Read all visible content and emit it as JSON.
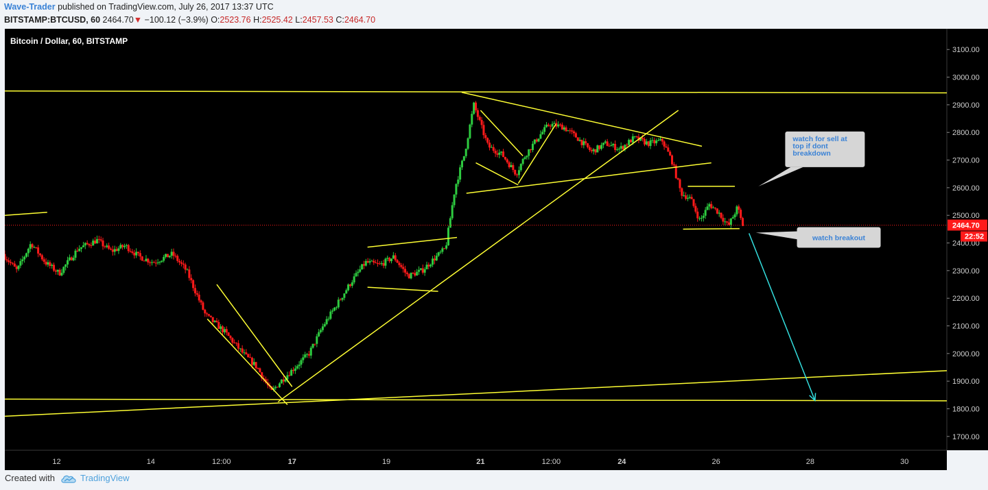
{
  "header": {
    "author": "Wave-Trader",
    "published": "published on TradingView.com, July 26, 2017 13:37 UTC",
    "symbol": "BITSTAMP:BTCUSD, 60",
    "last": "2464.70",
    "down_arrow": "▼",
    "change": "−100.12 (−3.9%)",
    "o_label": "O:",
    "o_value": "2523.76",
    "h_label": "H:",
    "h_value": "2525.42",
    "l_label": "L:",
    "l_value": "2457.53",
    "c_label": "C:",
    "c_value": "2464.70"
  },
  "footer": {
    "created_with": "Created with",
    "brand": "TradingView",
    "logo_icon": "tradingview-cloud-icon"
  },
  "colors": {
    "background": "#000000",
    "up": "#2ecc40",
    "down": "#ff1a1a",
    "trendline": "#ffff33",
    "arrow": "#33dddd",
    "price_tag": "#ff1a1a"
  },
  "chart_data": {
    "type": "candlestick",
    "title": "Bitcoin / Dollar, 60, BITSTAMP",
    "ylim": [
      1650,
      3175
    ],
    "y_ticks": [
      "3100.00",
      "3000.00",
      "2900.00",
      "2800.00",
      "2700.00",
      "2600.00",
      "2500.00",
      "2400.00",
      "2300.00",
      "2200.00",
      "2100.00",
      "2000.00",
      "1900.00",
      "1800.00",
      "1700.00"
    ],
    "x_ticks": [
      "12",
      "14",
      "12:00",
      "17",
      "19",
      "21",
      "12:00",
      "24",
      "26",
      "28",
      "30"
    ],
    "x_tick_days": [
      12,
      14,
      15.5,
      17,
      19,
      21,
      22.5,
      24,
      26,
      28,
      30
    ],
    "xlim": [
      10.9,
      30.9
    ],
    "current_price": "2464.70",
    "countdown": "22:52",
    "price_path": [
      [
        10.9,
        2360
      ],
      [
        11.2,
        2300
      ],
      [
        11.5,
        2400
      ],
      [
        11.8,
        2330
      ],
      [
        12.1,
        2290
      ],
      [
        12.5,
        2380
      ],
      [
        12.9,
        2410
      ],
      [
        13.2,
        2370
      ],
      [
        13.5,
        2390
      ],
      [
        13.8,
        2350
      ],
      [
        14.1,
        2330
      ],
      [
        14.5,
        2360
      ],
      [
        14.8,
        2300
      ],
      [
        15.2,
        2140
      ],
      [
        15.6,
        2080
      ],
      [
        16.0,
        2000
      ],
      [
        16.3,
        1950
      ],
      [
        16.6,
        1860
      ],
      [
        16.8,
        1900
      ],
      [
        17.1,
        1950
      ],
      [
        17.4,
        2000
      ],
      [
        17.7,
        2100
      ],
      [
        18.0,
        2180
      ],
      [
        18.3,
        2260
      ],
      [
        18.6,
        2330
      ],
      [
        18.9,
        2320
      ],
      [
        19.2,
        2350
      ],
      [
        19.5,
        2280
      ],
      [
        19.8,
        2300
      ],
      [
        20.1,
        2350
      ],
      [
        20.3,
        2380
      ],
      [
        20.5,
        2600
      ],
      [
        20.7,
        2720
      ],
      [
        20.9,
        2900
      ],
      [
        21.2,
        2750
      ],
      [
        21.5,
        2720
      ],
      [
        21.8,
        2650
      ],
      [
        22.0,
        2720
      ],
      [
        22.3,
        2790
      ],
      [
        22.5,
        2830
      ],
      [
        22.8,
        2820
      ],
      [
        23.1,
        2780
      ],
      [
        23.4,
        2730
      ],
      [
        23.7,
        2760
      ],
      [
        24.0,
        2740
      ],
      [
        24.3,
        2780
      ],
      [
        24.6,
        2760
      ],
      [
        24.9,
        2770
      ],
      [
        25.1,
        2700
      ],
      [
        25.3,
        2580
      ],
      [
        25.5,
        2560
      ],
      [
        25.7,
        2480
      ],
      [
        25.9,
        2540
      ],
      [
        26.1,
        2510
      ],
      [
        26.3,
        2460
      ],
      [
        26.5,
        2530
      ],
      [
        26.6,
        2465
      ]
    ],
    "trend_lines": [
      {
        "x1": 10.9,
        "y1": 2950,
        "x2": 30.9,
        "y2": 2943
      },
      {
        "x1": 10.9,
        "y1": 1835,
        "x2": 30.9,
        "y2": 1829
      },
      {
        "x1": 10.9,
        "y1": 1773,
        "x2": 30.9,
        "y2": 1938
      },
      {
        "x1": 10.9,
        "y1": 2500,
        "x2": 11.8,
        "y2": 2511
      },
      {
        "x1": 15.2,
        "y1": 2125,
        "x2": 16.9,
        "y2": 1815
      },
      {
        "x1": 15.4,
        "y1": 2250,
        "x2": 17.0,
        "y2": 1880
      },
      {
        "x1": 16.7,
        "y1": 1825,
        "x2": 25.2,
        "y2": 2880
      },
      {
        "x1": 18.6,
        "y1": 2240,
        "x2": 20.1,
        "y2": 2225
      },
      {
        "x1": 18.6,
        "y1": 2385,
        "x2": 20.5,
        "y2": 2420
      },
      {
        "x1": 20.7,
        "y1": 2580,
        "x2": 25.9,
        "y2": 2690
      },
      {
        "x1": 20.6,
        "y1": 2945,
        "x2": 25.7,
        "y2": 2750
      },
      {
        "x1": 20.9,
        "y1": 2690,
        "x2": 21.8,
        "y2": 2610
      },
      {
        "x1": 21.0,
        "y1": 2880,
        "x2": 21.9,
        "y2": 2715
      },
      {
        "x1": 21.8,
        "y1": 2615,
        "x2": 22.6,
        "y2": 2830
      },
      {
        "x1": 25.4,
        "y1": 2605,
        "x2": 26.4,
        "y2": 2605
      },
      {
        "x1": 25.3,
        "y1": 2450,
        "x2": 26.5,
        "y2": 2452
      }
    ],
    "arrow": {
      "x1": 26.7,
      "y1": 2435,
      "x2": 28.1,
      "y2": 1830
    },
    "annotations": [
      {
        "text": [
          "watch for sell at",
          "top if dont",
          "breakdown"
        ],
        "at_day": 26.9,
        "at_price": 2605
      },
      {
        "text": [
          "watch breakout"
        ],
        "at_day": 26.8,
        "at_price": 2430
      }
    ]
  }
}
